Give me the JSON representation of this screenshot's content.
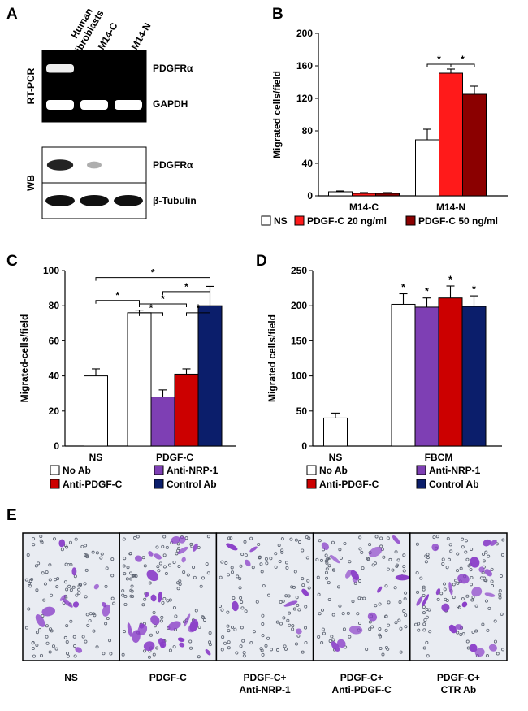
{
  "panels": {
    "A": {
      "letter": "A",
      "lanes": [
        "Human fibroblasts",
        "M14-C",
        "M14-N"
      ],
      "lane_lines": [
        [
          "Human",
          "fibroblasts"
        ],
        [
          "M14-C"
        ],
        [
          "M14-N"
        ]
      ],
      "groups": [
        {
          "side_label": "RT-PCR",
          "rows": [
            {
              "label": "PDGFRα",
              "lanes": [
                0.85,
                0.0,
                0.0
              ]
            },
            {
              "label": "GAPDH",
              "lanes": [
                1.0,
                1.0,
                1.0
              ]
            }
          ]
        },
        {
          "side_label": "WB",
          "rows": [
            {
              "label": "PDGFRα",
              "lanes": [
                0.9,
                0.12,
                0.0
              ]
            },
            {
              "label": "β-Tubulin",
              "lanes": [
                1.0,
                1.0,
                1.0
              ]
            }
          ]
        }
      ]
    },
    "E": {
      "letter": "E",
      "captions": [
        [
          "NS"
        ],
        [
          "PDGF-C"
        ],
        [
          "PDGF-C+",
          "Anti-NRP-1"
        ],
        [
          "PDGF-C+",
          "Anti-PDGF-C"
        ],
        [
          "PDGF-C+",
          "CTR Ab"
        ]
      ],
      "density": [
        0.25,
        0.9,
        0.1,
        0.35,
        0.6
      ],
      "stain_color": "#8a3ec8"
    }
  },
  "chart_data": [
    {
      "id": "B",
      "letter": "B",
      "type": "bar",
      "ylabel": "Migrated  cells/field",
      "ylim": [
        0,
        200
      ],
      "yticks": [
        0,
        40,
        80,
        120,
        160,
        200
      ],
      "categories": [
        "M14-C",
        "M14-N"
      ],
      "series": [
        {
          "name": "NS",
          "color": "#ffffff",
          "values": [
            5,
            69
          ],
          "errors": [
            1,
            13
          ]
        },
        {
          "name": "PDGF-C 20 ng/ml",
          "color": "#ff1a1a",
          "values": [
            3,
            151
          ],
          "errors": [
            1,
            5
          ]
        },
        {
          "name": "PDGF-C 50 ng/ml",
          "color": "#8b0000",
          "values": [
            3,
            125
          ],
          "errors": [
            1,
            10
          ]
        }
      ],
      "significance": [
        {
          "category": 1,
          "from": 0,
          "to": 1,
          "y": 162,
          "label": "*"
        },
        {
          "category": 1,
          "from": 1,
          "to": 2,
          "y": 162,
          "label": "*"
        }
      ],
      "value_stars": [],
      "legend_rows": [
        [
          0,
          1,
          2
        ]
      ]
    },
    {
      "id": "C",
      "letter": "C",
      "type": "bar",
      "ylabel": "Migrated-cells/field",
      "ylim": [
        0,
        100
      ],
      "yticks": [
        0,
        20,
        40,
        60,
        80,
        100
      ],
      "categories": [
        "NS",
        "PDGF-C"
      ],
      "series": [
        {
          "name": "No Ab",
          "color": "#ffffff",
          "values": [
            40,
            76
          ],
          "errors": [
            4,
            1.5
          ]
        },
        {
          "name": "Anti-NRP-1",
          "color": "#7e3fb4",
          "values": [
            null,
            28
          ],
          "errors": [
            null,
            4
          ]
        },
        {
          "name": "Anti-PDGF-C",
          "color": "#cc0000",
          "values": [
            null,
            41
          ],
          "errors": [
            null,
            3
          ]
        },
        {
          "name": "Control Ab",
          "color": "#0b1e6b",
          "values": [
            null,
            80
          ],
          "errors": [
            null,
            11
          ]
        }
      ],
      "significance": [
        {
          "a": [
            0,
            0
          ],
          "b": [
            1,
            0
          ],
          "y": 83,
          "label": "*"
        },
        {
          "a": [
            0,
            0
          ],
          "b": [
            1,
            3
          ],
          "y": 96,
          "label": "*"
        },
        {
          "a": [
            1,
            0
          ],
          "b": [
            1,
            1
          ],
          "y": 76,
          "label": "*"
        },
        {
          "a": [
            1,
            0
          ],
          "b": [
            1,
            2
          ],
          "y": 81,
          "label": "*"
        },
        {
          "a": [
            1,
            1
          ],
          "b": [
            1,
            3
          ],
          "y": 88,
          "label": "*"
        },
        {
          "a": [
            1,
            2
          ],
          "b": [
            1,
            3
          ],
          "y": 76,
          "label": "*"
        }
      ],
      "value_stars": [],
      "legend_rows": [
        [
          0,
          1
        ],
        [
          2,
          3
        ]
      ]
    },
    {
      "id": "D",
      "letter": "D",
      "type": "bar",
      "ylabel": "Migrated cells/field",
      "ylim": [
        0,
        250
      ],
      "yticks": [
        0,
        50,
        100,
        150,
        200,
        250
      ],
      "categories": [
        "NS",
        "FBCM"
      ],
      "series": [
        {
          "name": "No Ab",
          "color": "#ffffff",
          "values": [
            40,
            202
          ],
          "errors": [
            7,
            15
          ]
        },
        {
          "name": "Anti-NRP-1",
          "color": "#7e3fb4",
          "values": [
            null,
            198
          ],
          "errors": [
            null,
            13
          ]
        },
        {
          "name": "Anti-PDGF-C",
          "color": "#cc0000",
          "values": [
            null,
            211
          ],
          "errors": [
            null,
            17
          ]
        },
        {
          "name": "Control Ab",
          "color": "#0b1e6b",
          "values": [
            null,
            199
          ],
          "errors": [
            null,
            15
          ]
        }
      ],
      "significance": [],
      "value_stars": [
        {
          "category": 1,
          "series": 0,
          "label": "*"
        },
        {
          "category": 1,
          "series": 1,
          "label": "*"
        },
        {
          "category": 1,
          "series": 2,
          "label": "*"
        },
        {
          "category": 1,
          "series": 3,
          "label": "*"
        }
      ],
      "legend_rows": [
        [
          0,
          1
        ],
        [
          2,
          3
        ]
      ]
    }
  ]
}
